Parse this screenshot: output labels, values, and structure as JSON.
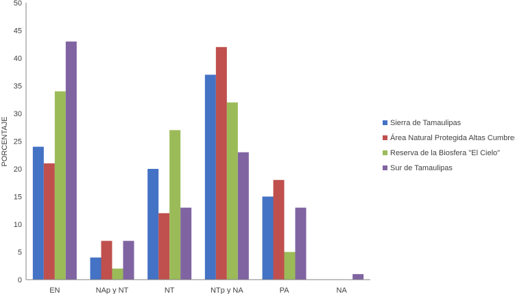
{
  "chart_data": {
    "type": "bar",
    "title": "",
    "xlabel": "",
    "ylabel": "PORCENTAJE",
    "ylim": [
      0,
      50
    ],
    "ytick_step": 5,
    "grid": false,
    "legend_position": "right",
    "categories": [
      "EN",
      "NAp y NT",
      "NT",
      "NTp y NA",
      "PA",
      "NA"
    ],
    "series": [
      {
        "name": "Sierra de Tamaulipas",
        "color": "#4472C4",
        "values": [
          24,
          4,
          20,
          37,
          15,
          0
        ]
      },
      {
        "name": "Área Natural Protegida Altas Cumbres",
        "color": "#C0504D",
        "values": [
          21,
          7,
          12,
          42,
          18,
          0
        ]
      },
      {
        "name": "Reserva de la Biosfera \"El Cielo\"",
        "color": "#9BBB59",
        "values": [
          34,
          2,
          27,
          32,
          5,
          0
        ]
      },
      {
        "name": "Sur de Tamaulipas",
        "color": "#8064A2",
        "values": [
          43,
          7,
          13,
          23,
          13,
          1
        ]
      }
    ]
  }
}
